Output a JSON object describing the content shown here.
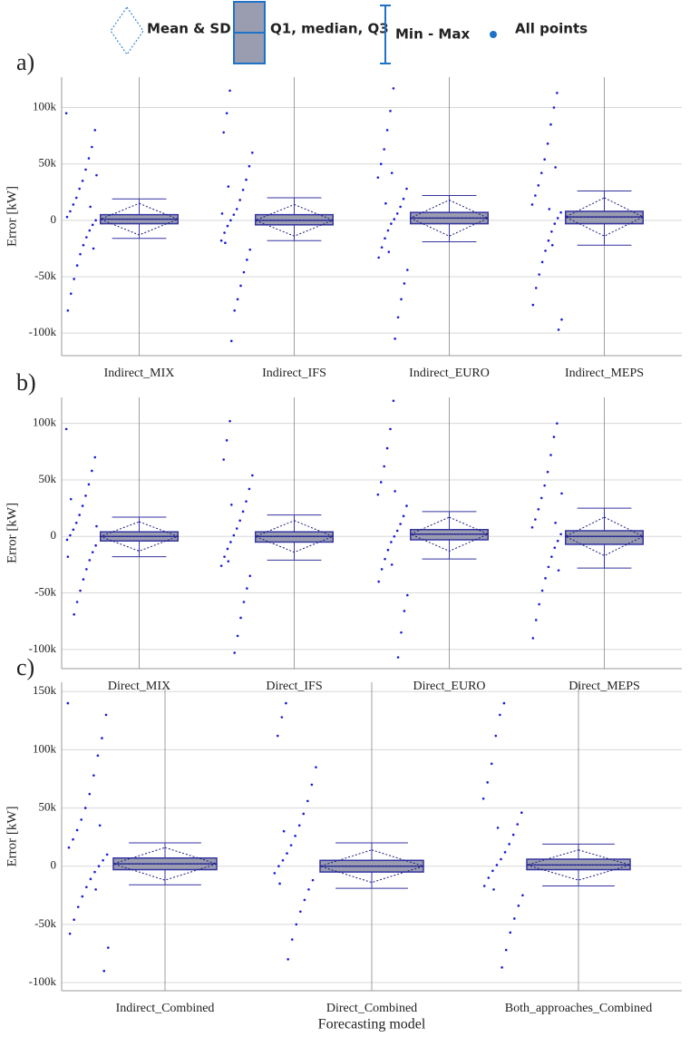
{
  "legend": {
    "items": [
      "Mean & SD",
      "Q1, median, Q3",
      "Min - Max",
      "All points"
    ]
  },
  "chart_data": [
    {
      "type": "box",
      "panel_label": "a)",
      "ylabel": "Error [kW]",
      "categories": [
        "Indirect_MIX",
        "Indirect_IFS",
        "Indirect_EURO",
        "Indirect_MEPS"
      ],
      "ylim": [
        -120000,
        127000
      ],
      "yticks": [
        {
          "value": -100000,
          "label": "-100k"
        },
        {
          "value": -50000,
          "label": "-50k"
        },
        0,
        {
          "value": 50000,
          "label": "50k"
        },
        {
          "value": 100000,
          "label": "100k"
        }
      ],
      "grid": true,
      "box_color": "#9a9cb0",
      "edge_color": "#3434a0",
      "point_color": "#1a1ad6",
      "boxes": [
        {
          "min": -16000,
          "q1": -3000,
          "median": 1000,
          "q3": 5000,
          "max": 19000,
          "mean": 1000,
          "sd": 14000
        },
        {
          "min": -18000,
          "q1": -4000,
          "median": 0,
          "q3": 5000,
          "max": 20000,
          "mean": 0,
          "sd": 14000
        },
        {
          "min": -19000,
          "q1": -3000,
          "median": 2000,
          "q3": 7000,
          "max": 22000,
          "mean": 2000,
          "sd": 16000
        },
        {
          "min": -22000,
          "q1": -3000,
          "median": 3000,
          "q3": 8000,
          "max": 26000,
          "mean": 3000,
          "sd": 17000
        }
      ],
      "points": [
        [
          95000,
          80000,
          65000,
          55000,
          45000,
          35000,
          28000,
          20000,
          14000,
          8000,
          3000,
          0,
          -4000,
          -9000,
          -15000,
          -22000,
          -30000,
          -40000,
          -52000,
          -65000,
          -80000,
          40000,
          -25000,
          12000
        ],
        [
          115000,
          95000,
          78000,
          60000,
          48000,
          36000,
          27000,
          18000,
          10000,
          5000,
          0,
          -5000,
          -11000,
          -18000,
          -26000,
          -35000,
          -46000,
          -58000,
          -70000,
          -80000,
          -107000,
          30000,
          -20000,
          6000
        ],
        [
          117000,
          97000,
          80000,
          63000,
          50000,
          38000,
          28000,
          19000,
          12000,
          6000,
          1000,
          -3000,
          -9000,
          -16000,
          -24000,
          -33000,
          -44000,
          -56000,
          -70000,
          -86000,
          -105000,
          42000,
          -28000,
          15000
        ],
        [
          113000,
          100000,
          85000,
          68000,
          54000,
          42000,
          31000,
          22000,
          14000,
          7000,
          2000,
          -3000,
          -10000,
          -18000,
          -27000,
          -37000,
          -48000,
          -60000,
          -75000,
          -88000,
          -97000,
          47000,
          -22000,
          10000
        ]
      ]
    },
    {
      "type": "box",
      "panel_label": "b)",
      "ylabel": "Error [kW]",
      "categories": [
        "Direct_MIX",
        "Direct_IFS",
        "Direct_EURO",
        "Direct_MEPS"
      ],
      "ylim": [
        -117000,
        123000
      ],
      "yticks": [
        {
          "value": -100000,
          "label": "-100k"
        },
        {
          "value": -50000,
          "label": "-50k"
        },
        0,
        {
          "value": 50000,
          "label": "50k"
        },
        {
          "value": 100000,
          "label": "100k"
        }
      ],
      "grid": true,
      "box_color": "#9a9cb0",
      "edge_color": "#3434a0",
      "point_color": "#1a1ad6",
      "boxes": [
        {
          "min": -18000,
          "q1": -4000,
          "median": 0,
          "q3": 4000,
          "max": 17000,
          "mean": 0,
          "sd": 13000
        },
        {
          "min": -21000,
          "q1": -5000,
          "median": 0,
          "q3": 4000,
          "max": 19000,
          "mean": 0,
          "sd": 14000
        },
        {
          "min": -20000,
          "q1": -3000,
          "median": 2000,
          "q3": 6000,
          "max": 22000,
          "mean": 2000,
          "sd": 15000
        },
        {
          "min": -28000,
          "q1": -7000,
          "median": 0,
          "q3": 5000,
          "max": 25000,
          "mean": 0,
          "sd": 17000
        }
      ],
      "points": [
        [
          95000,
          70000,
          58000,
          46000,
          36000,
          27000,
          19000,
          12000,
          6000,
          1000,
          -3000,
          -8000,
          -14000,
          -21000,
          -29000,
          -38000,
          -48000,
          -58000,
          -69000,
          33000,
          -18000,
          9000
        ],
        [
          102000,
          85000,
          68000,
          54000,
          42000,
          31000,
          22000,
          14000,
          7000,
          1000,
          -5000,
          -11000,
          -18000,
          -26000,
          -35000,
          -46000,
          -58000,
          -72000,
          -88000,
          -103000,
          28000,
          -22000
        ],
        [
          120000,
          95000,
          78000,
          62000,
          48000,
          37000,
          27000,
          18000,
          11000,
          5000,
          0,
          -5000,
          -12000,
          -20000,
          -29000,
          -40000,
          -52000,
          -66000,
          -85000,
          -107000,
          40000,
          -25000
        ],
        [
          100000,
          88000,
          72000,
          57000,
          45000,
          34000,
          24000,
          15000,
          8000,
          2000,
          -4000,
          -10000,
          -18000,
          -27000,
          -37000,
          -48000,
          -60000,
          -74000,
          -90000,
          38000,
          -30000,
          12000
        ]
      ]
    },
    {
      "type": "box",
      "panel_label": "c)",
      "ylabel": "Error [kW]",
      "xlabel": "Forecasting model",
      "categories": [
        "Indirect_Combined",
        "Direct_Combined",
        "Both_approaches_Combined"
      ],
      "ylim": [
        -107000,
        158000
      ],
      "yticks": [
        {
          "value": -100000,
          "label": "-100k"
        },
        {
          "value": -50000,
          "label": "-50k"
        },
        0,
        {
          "value": 50000,
          "label": "50k"
        },
        {
          "value": 100000,
          "label": "100k"
        },
        {
          "value": 150000,
          "label": "150k"
        }
      ],
      "grid": true,
      "box_color": "#9a9cb0",
      "edge_color": "#3434a0",
      "point_color": "#1a1ad6",
      "boxes": [
        {
          "min": -16000,
          "q1": -3000,
          "median": 2000,
          "q3": 7000,
          "max": 20000,
          "mean": 2000,
          "sd": 14000
        },
        {
          "min": -19000,
          "q1": -5000,
          "median": 0,
          "q3": 5000,
          "max": 20000,
          "mean": 0,
          "sd": 14000
        },
        {
          "min": -17000,
          "q1": -3000,
          "median": 1000,
          "q3": 6000,
          "max": 19000,
          "mean": 1000,
          "sd": 13000
        }
      ],
      "points": [
        [
          140000,
          130000,
          110000,
          95000,
          78000,
          62000,
          50000,
          40000,
          31000,
          23000,
          16000,
          10000,
          5000,
          0,
          -5000,
          -11000,
          -18000,
          -26000,
          -35000,
          -46000,
          -58000,
          -70000,
          -90000,
          35000,
          -20000
        ],
        [
          140000,
          128000,
          112000,
          85000,
          70000,
          56000,
          45000,
          35000,
          26000,
          18000,
          11000,
          5000,
          0,
          -6000,
          -12000,
          -20000,
          -29000,
          -39000,
          -50000,
          -63000,
          -80000,
          30000,
          -15000
        ],
        [
          140000,
          130000,
          112000,
          88000,
          72000,
          58000,
          46000,
          36000,
          27000,
          19000,
          12000,
          6000,
          1000,
          -4000,
          -10000,
          -17000,
          -25000,
          -34000,
          -45000,
          -57000,
          -72000,
          -87000,
          33000,
          -20000
        ]
      ]
    }
  ]
}
